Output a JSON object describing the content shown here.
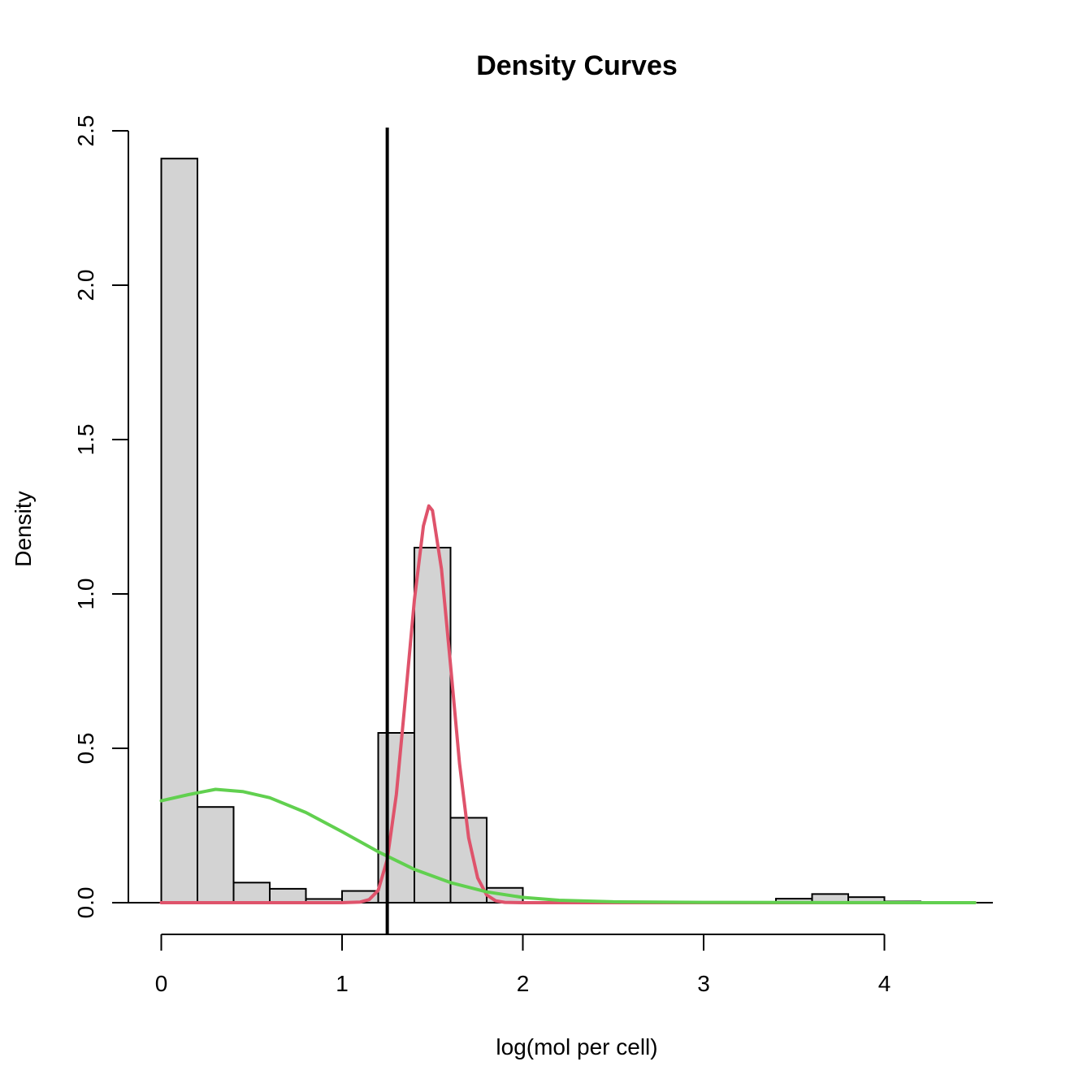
{
  "chart_data": {
    "type": "histogram",
    "title": "Density Curves",
    "xlabel": "log(mol per cell)",
    "ylabel": "Density",
    "xlim": [
      0,
      4.6
    ],
    "ylim": [
      0,
      2.5
    ],
    "x_ticks": [
      0,
      1,
      2,
      3,
      4
    ],
    "x_tick_labels": [
      "0",
      "1",
      "2",
      "3",
      "4"
    ],
    "y_ticks": [
      0,
      0.5,
      1,
      1.5,
      2,
      2.5
    ],
    "y_tick_labels": [
      "0.0",
      "0.5",
      "1.0",
      "1.5",
      "2.0",
      "2.5"
    ],
    "grid": false,
    "legend": "none",
    "bin_edges": [
      0,
      0.2,
      0.4,
      0.6,
      0.8,
      1.0,
      1.2,
      1.4,
      1.6,
      1.8,
      2.0,
      2.2,
      2.4,
      2.6,
      2.8,
      3.0,
      3.2,
      3.4,
      3.6,
      3.8,
      4.0,
      4.2
    ],
    "densities": [
      2.41,
      0.31,
      0.065,
      0.045,
      0.012,
      0.038,
      0.55,
      1.15,
      0.275,
      0.048,
      0.0,
      0.0,
      0.0,
      0.0,
      0.0,
      0.0,
      0.0,
      0.013,
      0.028,
      0.018,
      0.004
    ],
    "bar_color": "#d3d3d3",
    "vline_x": 1.25,
    "vline_color": "#000000",
    "baseline_y": 0,
    "series": [
      {
        "type": "line",
        "color": "#df536b",
        "x": [
          0,
          0.5,
          1.0,
          1.1,
          1.15,
          1.2,
          1.25,
          1.3,
          1.35,
          1.4,
          1.45,
          1.48,
          1.5,
          1.55,
          1.6,
          1.65,
          1.7,
          1.75,
          1.8,
          1.85,
          1.9,
          2.0,
          2.5,
          3.0,
          3.5,
          4.0,
          4.5
        ],
        "y": [
          0,
          0,
          0,
          0.002,
          0.01,
          0.04,
          0.14,
          0.35,
          0.66,
          0.98,
          1.22,
          1.285,
          1.27,
          1.08,
          0.77,
          0.45,
          0.21,
          0.08,
          0.025,
          0.006,
          0.001,
          0,
          0,
          0,
          0,
          0,
          0
        ]
      },
      {
        "type": "line",
        "color": "#61d04f",
        "x": [
          0,
          0.15,
          0.3,
          0.45,
          0.6,
          0.8,
          1.0,
          1.2,
          1.4,
          1.6,
          1.8,
          2.0,
          2.2,
          2.5,
          3.0,
          3.5,
          4.0,
          4.5
        ],
        "y": [
          0.33,
          0.35,
          0.367,
          0.36,
          0.34,
          0.292,
          0.23,
          0.165,
          0.108,
          0.065,
          0.035,
          0.017,
          0.008,
          0.003,
          0.001,
          0.0005,
          0.0002,
          0.0001
        ]
      }
    ]
  }
}
